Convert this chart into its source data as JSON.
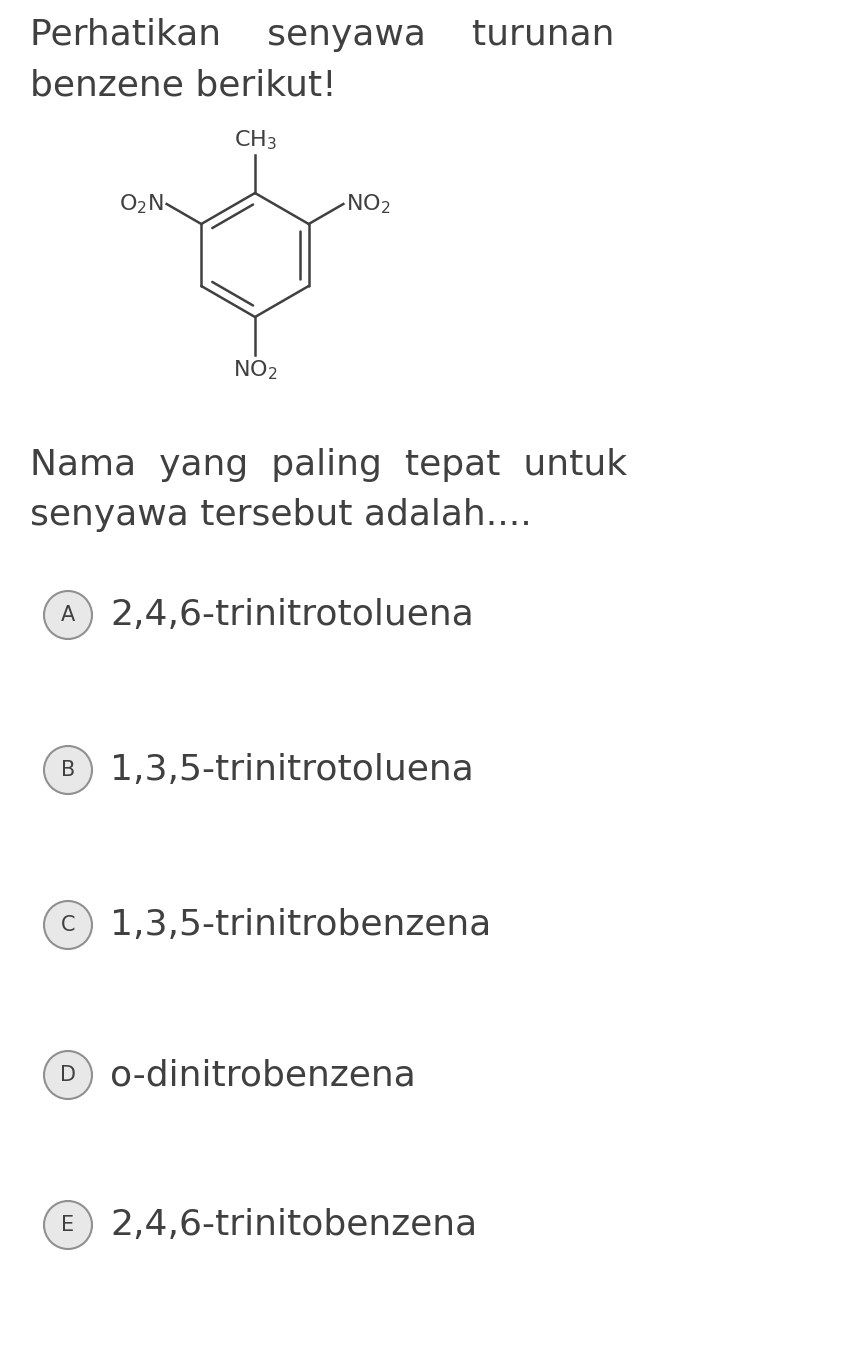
{
  "background_color": "#ffffff",
  "text_color": "#404040",
  "circle_edge_color": "#909090",
  "title_line1": "Perhatikan    senyawa    turunan",
  "title_line2": "benzene berikut!",
  "question_line1": "Nama  yang  paling  tepat  untuk",
  "question_line2": "senyawa tersebut adalah....",
  "options": [
    {
      "letter": "A",
      "text": "2,4,6-trinitrotoluena"
    },
    {
      "letter": "B",
      "text": "1,3,5-trinitrotoluena"
    },
    {
      "letter": "C",
      "text": "1,3,5-trinitrobenzena"
    },
    {
      "letter": "D",
      "text": "o-dinitrobenzena"
    },
    {
      "letter": "E",
      "text": "2,4,6-trinitobenzena"
    }
  ],
  "title_fontsize": 26,
  "question_fontsize": 26,
  "option_fontsize": 26,
  "mol_fontsize": 16,
  "figwidth": 8.58,
  "figheight": 13.65,
  "dpi": 100
}
